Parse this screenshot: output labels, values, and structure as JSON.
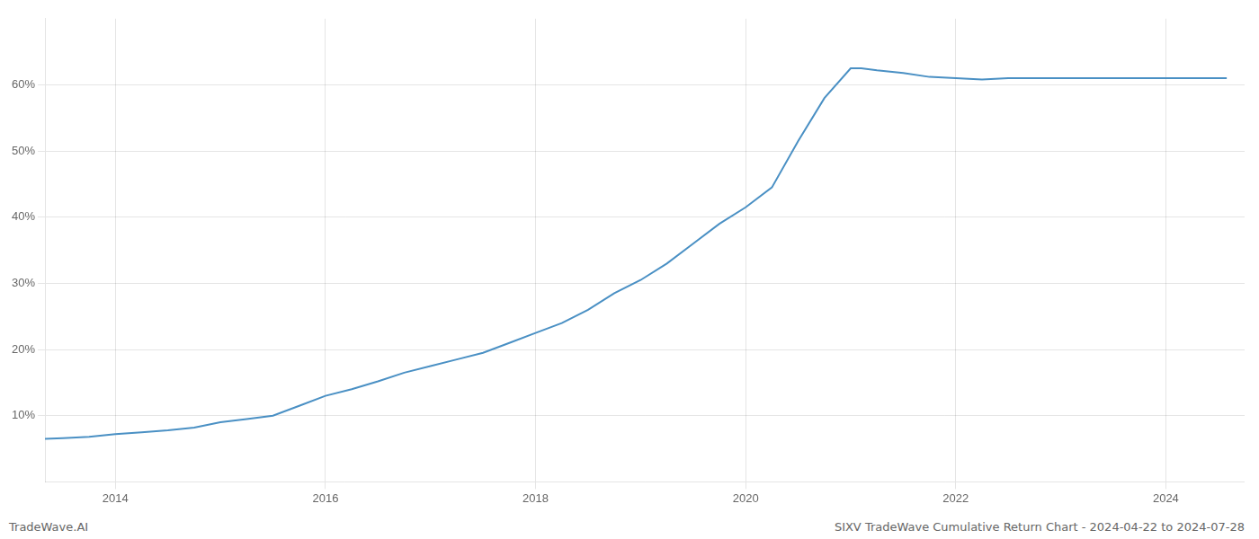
{
  "chart_data": {
    "type": "line",
    "title": "SIXV TradeWave Cumulative Return Chart - 2024-04-22 to 2024-07-28",
    "annotations": [
      "TradeWave.AI"
    ],
    "color": "#4a90c4",
    "x": [
      2013.33,
      2013.5,
      2013.75,
      2014.0,
      2014.25,
      2014.5,
      2014.75,
      2015.0,
      2015.25,
      2015.5,
      2015.75,
      2016.0,
      2016.25,
      2016.5,
      2016.75,
      2017.0,
      2017.25,
      2017.5,
      2017.75,
      2018.0,
      2018.25,
      2018.5,
      2018.75,
      2019.0,
      2019.25,
      2019.5,
      2019.75,
      2020.0,
      2020.25,
      2020.5,
      2020.75,
      2021.0,
      2021.1,
      2021.25,
      2021.5,
      2021.75,
      2022.0,
      2022.25,
      2022.5,
      2022.75,
      2023.0,
      2023.25,
      2023.5,
      2023.75,
      2024.0,
      2024.25,
      2024.58
    ],
    "values": [
      6.5,
      6.6,
      6.8,
      7.2,
      7.5,
      7.8,
      8.2,
      9.0,
      9.5,
      10.0,
      11.5,
      13.0,
      14.0,
      15.2,
      16.5,
      17.5,
      18.5,
      19.5,
      21.0,
      22.5,
      24.0,
      26.0,
      28.5,
      30.5,
      33.0,
      36.0,
      39.0,
      41.5,
      44.5,
      51.5,
      58.0,
      62.5,
      62.5,
      62.2,
      61.8,
      61.2,
      61.0,
      60.8,
      61.0,
      61.0,
      61.0,
      61.0,
      61.0,
      61.0,
      61.0,
      61.0,
      61.0
    ],
    "xlim": [
      2013.33,
      2024.75
    ],
    "ylim": [
      0,
      70
    ],
    "xticks": [
      2014,
      2016,
      2018,
      2020,
      2022,
      2024
    ],
    "yticks": [
      {
        "value": 10,
        "label": "10%"
      },
      {
        "value": 20,
        "label": "20%"
      },
      {
        "value": 30,
        "label": "30%"
      },
      {
        "value": 40,
        "label": "40%"
      },
      {
        "value": 50,
        "label": "50%"
      },
      {
        "value": 60,
        "label": "60%"
      }
    ],
    "grid": true
  }
}
